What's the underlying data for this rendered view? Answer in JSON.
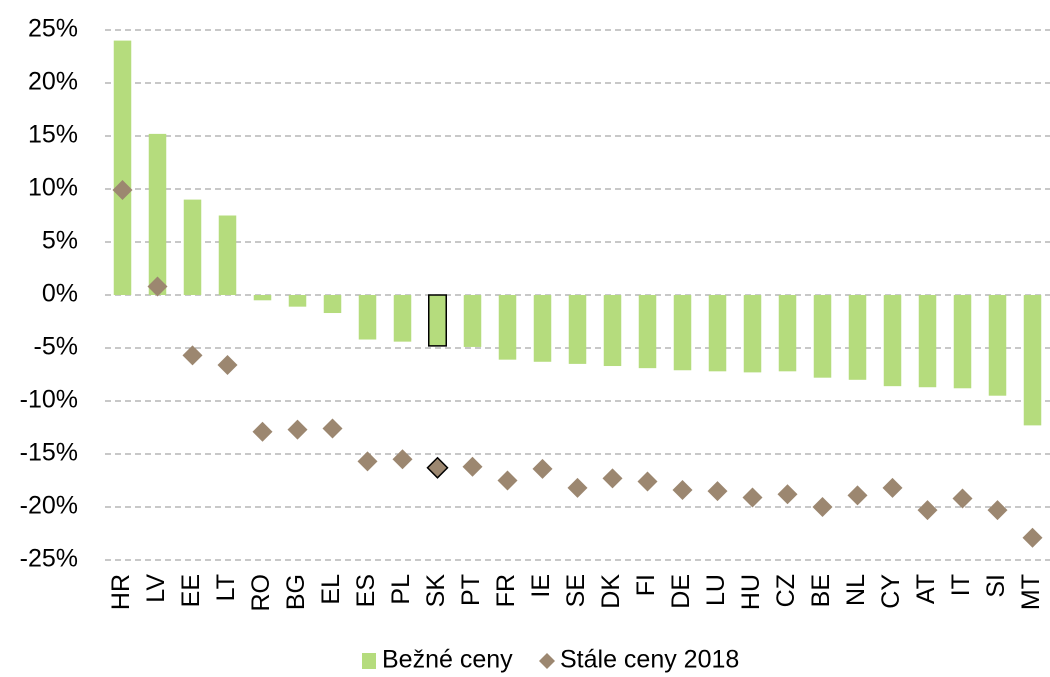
{
  "chart_data": {
    "type": "bar",
    "categories": [
      "HR",
      "LV",
      "EE",
      "LT",
      "RO",
      "BG",
      "EL",
      "ES",
      "PL",
      "SK",
      "PT",
      "FR",
      "IE",
      "SE",
      "DK",
      "FI",
      "DE",
      "LU",
      "HU",
      "CZ",
      "BE",
      "NL",
      "CY",
      "AT",
      "IT",
      "SI",
      "MT"
    ],
    "series": [
      {
        "name": "Bežné ceny",
        "type": "bar",
        "color": "#b5dc7d",
        "values": [
          24,
          15.2,
          9,
          7.5,
          -0.5,
          -1.1,
          -1.7,
          -4.2,
          -4.4,
          -4.8,
          -4.9,
          -6.1,
          -6.3,
          -6.5,
          -6.7,
          -6.9,
          -7.1,
          -7.2,
          -7.3,
          -7.2,
          -7.8,
          -8.0,
          -8.6,
          -8.7,
          -8.8,
          -9.5,
          -12.3
        ]
      },
      {
        "name": "Stále ceny 2018",
        "type": "diamond",
        "color": "#9c8770",
        "values": [
          9.9,
          0.8,
          -5.7,
          -6.6,
          -12.9,
          -12.7,
          -12.6,
          -15.7,
          -15.5,
          -16.3,
          -16.2,
          -17.5,
          -16.4,
          -18.2,
          -17.3,
          -17.6,
          -18.4,
          -18.5,
          -19.1,
          -18.8,
          -20,
          -18.9,
          -18.2,
          -20.3,
          -19.2,
          -20.3,
          -22.9
        ]
      }
    ],
    "highlight": "SK",
    "ylim": [
      -25,
      25
    ],
    "yticks": [
      {
        "value": -25,
        "label": "-25%"
      },
      {
        "value": -20,
        "label": "-20%"
      },
      {
        "value": -15,
        "label": "-15%"
      },
      {
        "value": -10,
        "label": "-10%"
      },
      {
        "value": -5,
        "label": "-5%"
      },
      {
        "value": 0,
        "label": "0%"
      },
      {
        "value": 5,
        "label": "5%"
      },
      {
        "value": 10,
        "label": "10%"
      },
      {
        "value": 15,
        "label": "15%"
      },
      {
        "value": 20,
        "label": "20%"
      },
      {
        "value": 25,
        "label": "25%"
      }
    ],
    "grid": true,
    "legend": "bottom"
  }
}
